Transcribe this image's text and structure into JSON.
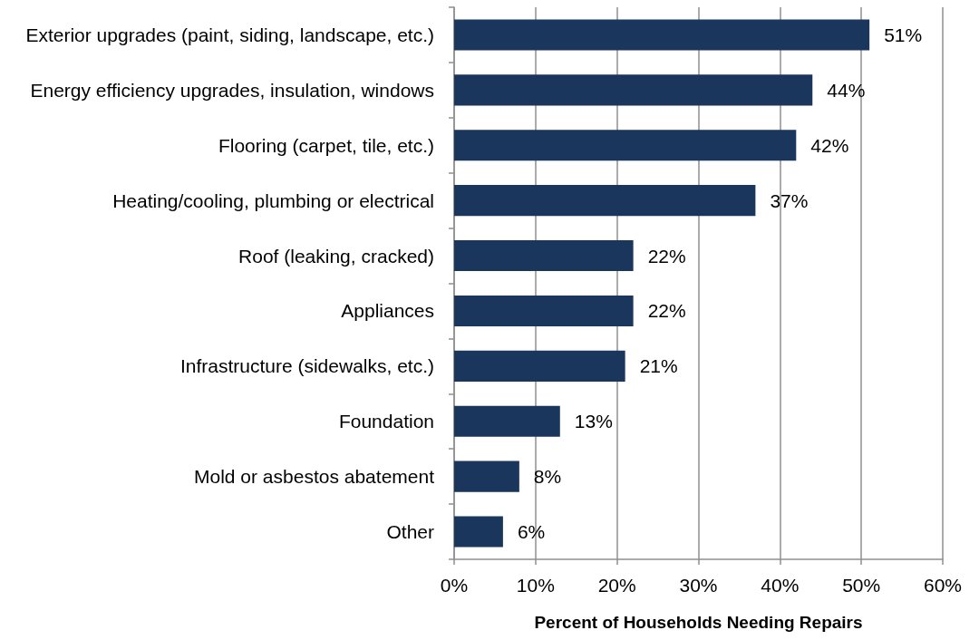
{
  "chart_data": {
    "type": "bar",
    "orientation": "horizontal",
    "categories": [
      "Exterior upgrades (paint, siding, landscape, etc.)",
      "Energy efficiency upgrades, insulation, windows",
      "Flooring (carpet, tile, etc.)",
      "Heating/cooling, plumbing or electrical",
      "Roof (leaking, cracked)",
      "Appliances",
      "Infrastructure (sidewalks, etc.)",
      "Foundation",
      "Mold or asbestos abatement",
      "Other"
    ],
    "values": [
      51,
      44,
      42,
      37,
      22,
      22,
      21,
      13,
      8,
      6
    ],
    "value_labels": [
      "51%",
      "44%",
      "42%",
      "37%",
      "22%",
      "22%",
      "21%",
      "13%",
      "8%",
      "6%"
    ],
    "color": "#1b365d",
    "xlabel": "Percent of Households Needing Repairs",
    "xlim": [
      0,
      60
    ],
    "xticks": [
      {
        "value": 0,
        "label": "0%"
      },
      {
        "value": 10,
        "label": "10%"
      },
      {
        "value": 20,
        "label": "20%"
      },
      {
        "value": 30,
        "label": "30%"
      },
      {
        "value": 40,
        "label": "40%"
      },
      {
        "value": 50,
        "label": "50%"
      },
      {
        "value": 60,
        "label": "60%"
      }
    ],
    "grid": "x"
  }
}
